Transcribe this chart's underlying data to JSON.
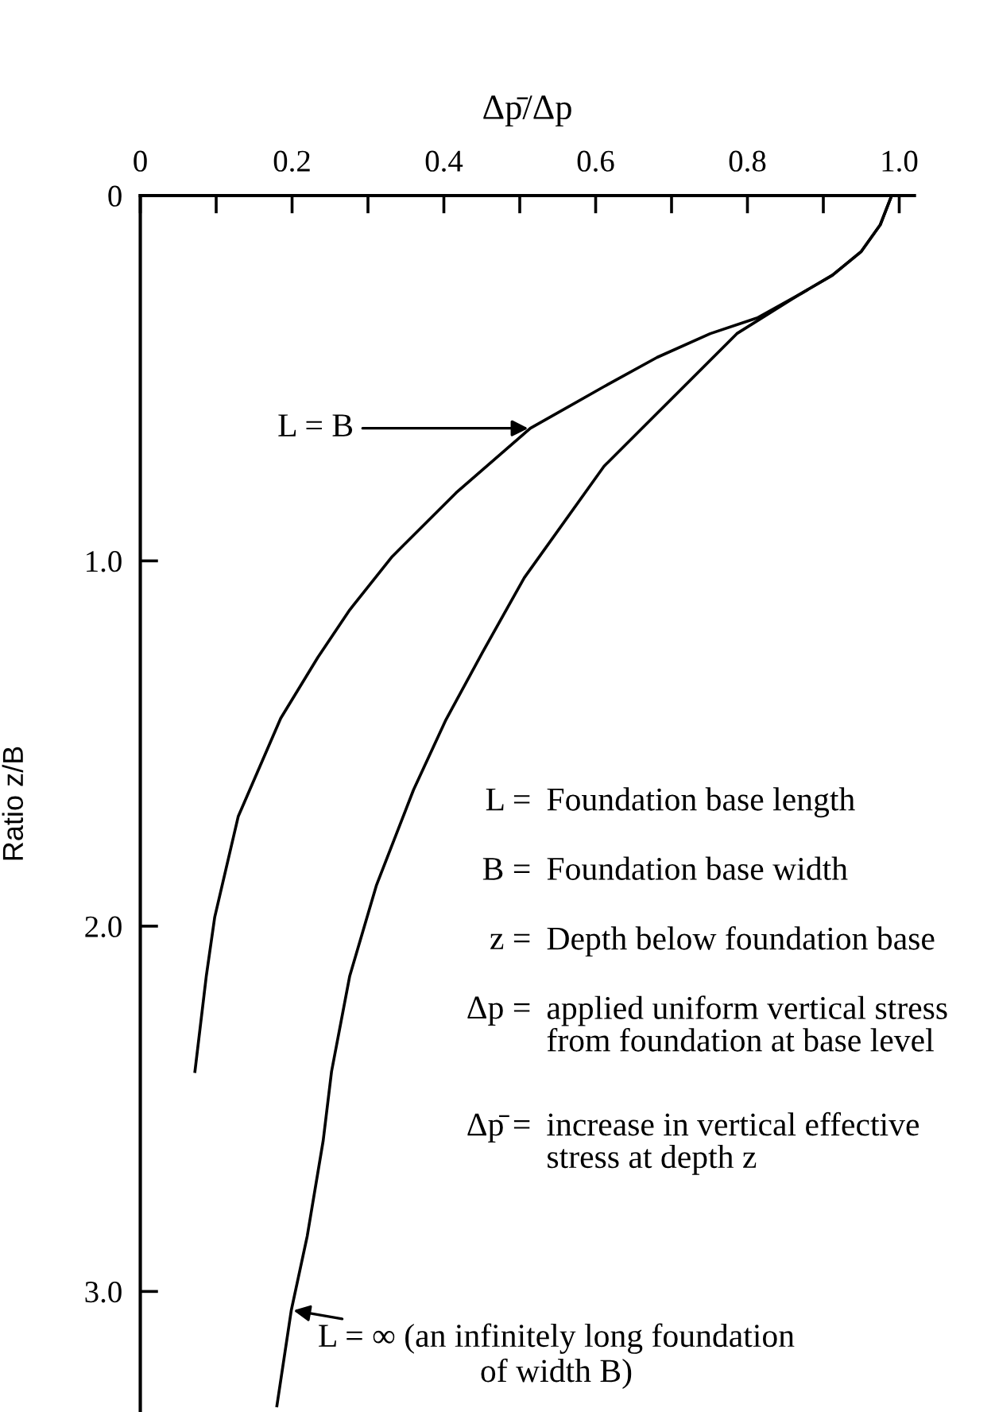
{
  "chart_data": {
    "type": "line",
    "xlabel": "Δp̄/Δp",
    "ylabel": "Ratio z/B",
    "xlim": [
      0,
      1.02
    ],
    "ylim": [
      3.33,
      0
    ],
    "xticks": [
      0,
      {
        "value": 0.1,
        "label": null
      },
      0.2,
      {
        "value": 0.3,
        "label": null
      },
      0.4,
      {
        "value": 0.5,
        "label": null
      },
      0.6,
      {
        "value": 0.7,
        "label": null
      },
      0.8,
      {
        "value": 0.9,
        "label": null
      },
      {
        "value": 1.0,
        "label": "1.0"
      }
    ],
    "yticks": [
      0,
      {
        "value": 1.0,
        "label": "1.0"
      },
      {
        "value": 2.0,
        "label": "2.0"
      },
      {
        "value": 3.0,
        "label": "3.0"
      }
    ],
    "grid": false,
    "marker": "none",
    "line_style": "solid",
    "series": [
      {
        "name": "L = B",
        "color": "#000000",
        "x": [
          0.99,
          0.975,
          0.95,
          0.912,
          0.87,
          0.814,
          0.751,
          0.681,
          0.611,
          0.514,
          0.416,
          0.332,
          0.276,
          0.234,
          0.185,
          0.129,
          0.098,
          0.087,
          0.072
        ],
        "values": [
          0,
          0.08,
          0.153,
          0.218,
          0.269,
          0.334,
          0.378,
          0.443,
          0.523,
          0.637,
          0.814,
          0.988,
          1.134,
          1.264,
          1.431,
          1.7,
          1.976,
          2.136,
          2.398
        ]
      },
      {
        "name": "L = ∞ (an infinitely long foundation\nof width B)",
        "color": "#000000",
        "x": [
          0.99,
          0.975,
          0.95,
          0.912,
          0.87,
          0.786,
          0.681,
          0.611,
          0.506,
          0.451,
          0.402,
          0.36,
          0.311,
          0.276,
          0.252,
          0.241,
          0.22,
          0.199,
          0.18
        ],
        "values": [
          0,
          0.08,
          0.153,
          0.218,
          0.269,
          0.378,
          0.596,
          0.741,
          1.046,
          1.25,
          1.438,
          1.627,
          1.889,
          2.136,
          2.398,
          2.587,
          2.848,
          3.051,
          3.313
        ]
      }
    ],
    "annotations": [
      "L = Foundation base length",
      "B = Foundation base width",
      "z = Depth below foundation base",
      "Δp = applied uniform vertical stress\nfrom foundation at base level",
      "Δp̄ = increase in vertical effective\nstress at depth z"
    ]
  }
}
